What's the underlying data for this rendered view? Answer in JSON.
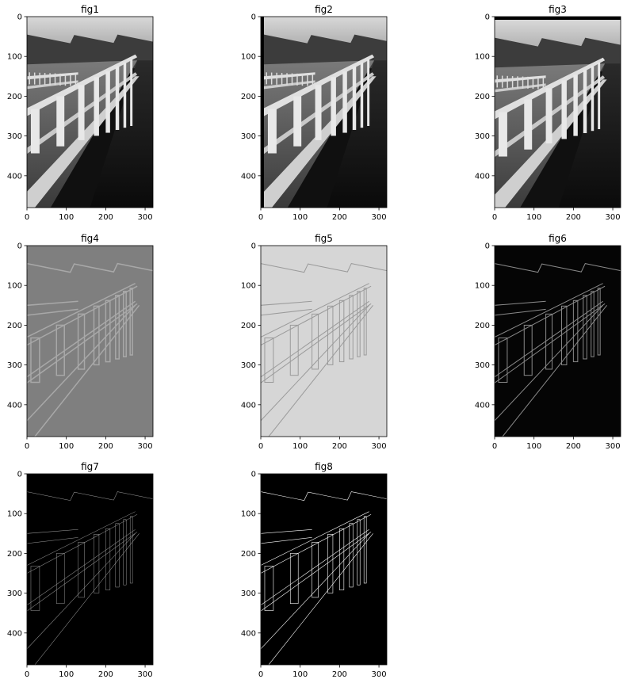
{
  "panels": [
    {
      "title": "fig1",
      "style": "photo"
    },
    {
      "title": "fig2",
      "style": "photo-shifted-right"
    },
    {
      "title": "fig3",
      "style": "photo-shifted-down"
    },
    {
      "title": "fig4",
      "style": "emboss-vertical"
    },
    {
      "title": "fig5",
      "style": "emboss-horizontal"
    },
    {
      "title": "fig6",
      "style": "gradient-magnitude"
    },
    {
      "title": "fig7",
      "style": "fine-edges"
    },
    {
      "title": "fig8",
      "style": "canny-edges"
    }
  ],
  "x_ticks": [
    "0",
    "100",
    "200",
    "300"
  ],
  "y_ticks": [
    "0",
    "100",
    "200",
    "300",
    "400"
  ],
  "colors": {
    "background": "#ffffff",
    "axis": "#000000",
    "title_text": "#000000"
  }
}
